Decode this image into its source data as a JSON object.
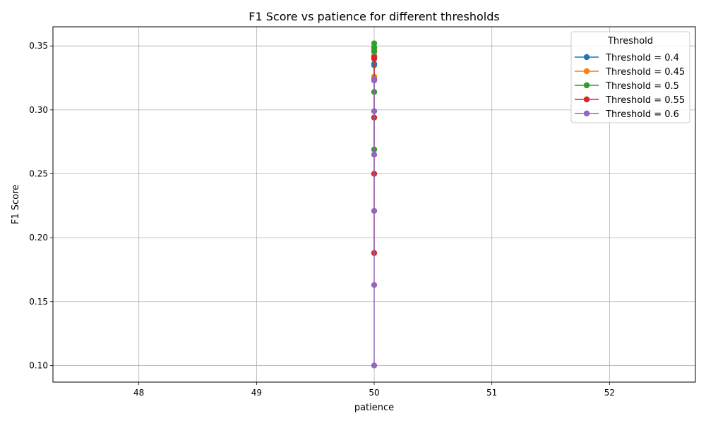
{
  "chart_data": {
    "type": "line",
    "title": "F1 Score vs patience for different thresholds",
    "xlabel": "patience",
    "ylabel": "F1 Score",
    "xlim": [
      47.27,
      52.73
    ],
    "ylim": [
      0.087,
      0.365
    ],
    "xticks": [
      48,
      49,
      50,
      51,
      52
    ],
    "xtick_labels": [
      "48",
      "49",
      "50",
      "51",
      "52"
    ],
    "yticks": [
      0.1,
      0.15,
      0.2,
      0.25,
      0.3,
      0.35
    ],
    "ytick_labels": [
      "0.10",
      "0.15",
      "0.20",
      "0.25",
      "0.30",
      "0.35"
    ],
    "grid": true,
    "legend_title": "Threshold",
    "legend_position": "top-right",
    "series": [
      {
        "name": "Threshold = 0.4",
        "color": "#1f77b4",
        "x": [
          50,
          50,
          50
        ],
        "y": [
          0.335,
          0.342,
          0.336
        ]
      },
      {
        "name": "Threshold = 0.45",
        "color": "#ff7f0e",
        "x": [
          50,
          50,
          50,
          50
        ],
        "y": [
          0.326,
          0.345,
          0.348,
          0.341
        ]
      },
      {
        "name": "Threshold = 0.5",
        "color": "#2ca02c",
        "x": [
          50,
          50,
          50,
          50,
          50
        ],
        "y": [
          0.269,
          0.314,
          0.346,
          0.352,
          0.349
        ]
      },
      {
        "name": "Threshold = 0.55",
        "color": "#d62728",
        "x": [
          50,
          50,
          50,
          50,
          50,
          50
        ],
        "y": [
          0.188,
          0.25,
          0.294,
          0.324,
          0.34,
          0.341
        ]
      },
      {
        "name": "Threshold = 0.6",
        "color": "#9467bd",
        "x": [
          50,
          50,
          50,
          50,
          50,
          50,
          50
        ],
        "y": [
          0.1,
          0.163,
          0.221,
          0.265,
          0.299,
          0.324,
          0.323
        ]
      }
    ]
  }
}
